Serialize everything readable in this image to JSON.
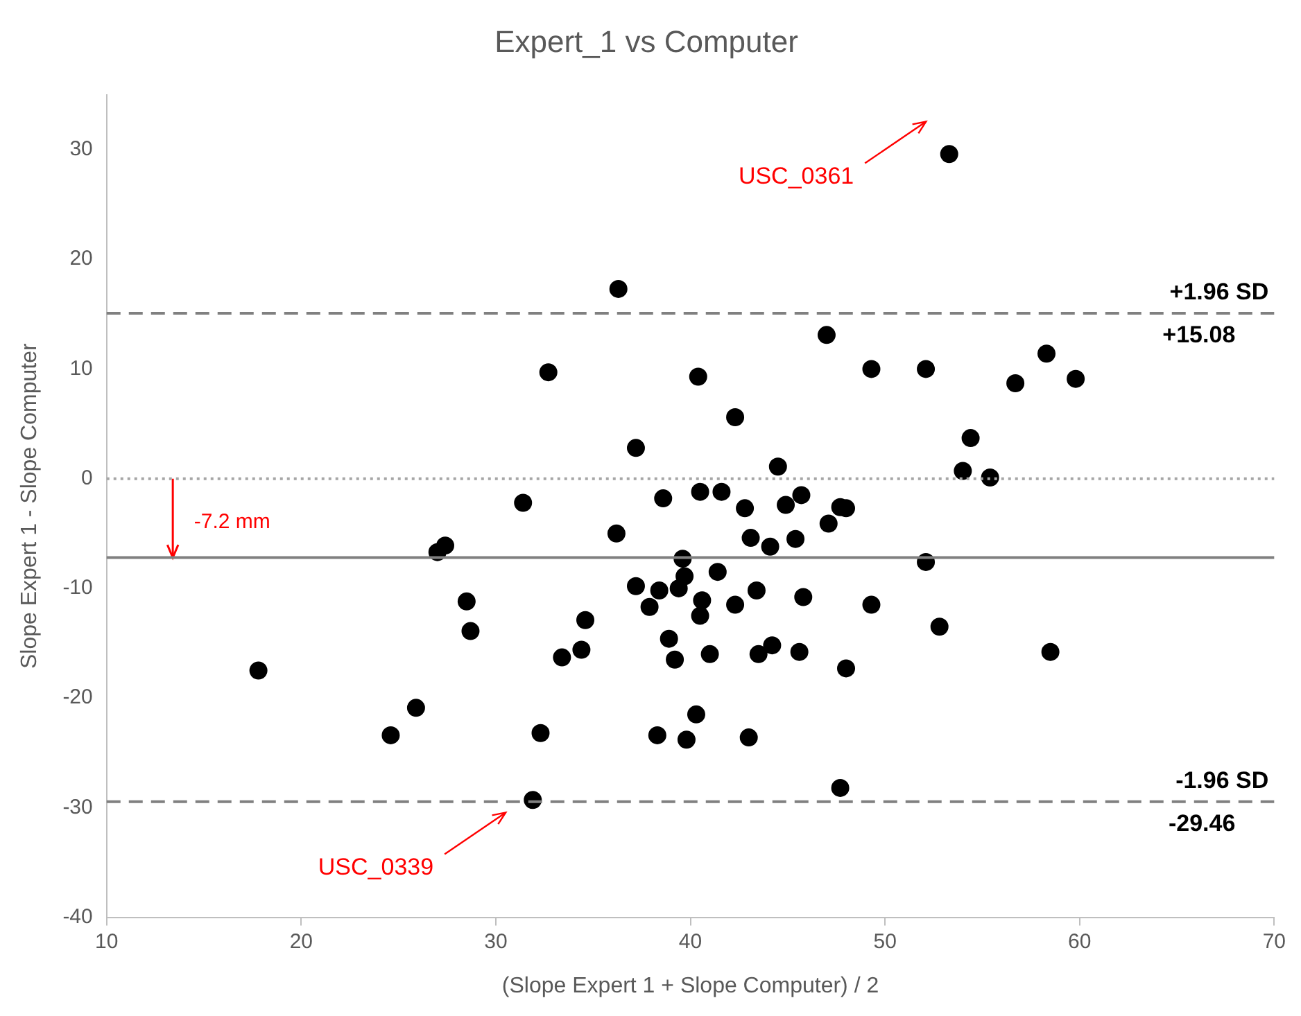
{
  "chart_data": {
    "type": "scatter",
    "title": "Expert_1 vs Computer",
    "xlabel": "(Slope Expert 1 + Slope Computer) / 2",
    "ylabel": "Slope Expert 1 - Slope Computer",
    "series": [
      {
        "color": "#000000",
        "x": [
          53.3,
          36.3,
          47.0,
          49.3,
          52.1,
          58.3,
          56.7,
          59.8,
          42.3,
          54.4,
          54.0,
          55.4,
          44.5,
          42.8,
          44.9,
          45.7,
          47.7,
          48.0,
          47.1,
          32.7,
          40.4,
          37.2,
          31.4,
          38.6,
          40.5,
          41.6,
          36.2,
          43.1,
          27.0,
          27.4,
          39.6,
          39.7,
          41.4,
          37.2,
          38.4,
          39.4,
          40.6,
          40.5,
          42.3,
          43.4,
          37.9,
          28.5,
          28.7,
          34.6,
          34.4,
          33.4,
          38.9,
          39.2,
          41.0,
          43.5,
          44.2,
          17.8,
          25.9,
          24.6,
          32.3,
          40.3,
          38.3,
          39.8,
          43.0,
          31.9,
          44.1,
          45.4,
          52.1,
          45.8,
          49.3,
          52.8,
          45.6,
          48.0,
          58.5,
          47.7
        ],
        "values": [
          29.6,
          17.3,
          13.1,
          10.0,
          10.0,
          11.4,
          8.7,
          9.1,
          5.6,
          3.7,
          0.7,
          0.1,
          1.1,
          -2.7,
          -2.4,
          -1.5,
          -2.6,
          -2.7,
          -4.1,
          9.7,
          9.3,
          2.8,
          -2.2,
          -1.8,
          -1.2,
          -1.2,
          -5.0,
          -5.4,
          -6.7,
          -6.1,
          -7.3,
          -8.9,
          -8.5,
          -9.8,
          -10.2,
          -10.0,
          -11.1,
          -12.5,
          -11.5,
          -10.2,
          -11.7,
          -11.2,
          -13.9,
          -12.9,
          -15.6,
          -16.3,
          -14.6,
          -16.5,
          -16.0,
          -16.0,
          -15.2,
          -17.5,
          -20.9,
          -23.4,
          -23.2,
          -21.5,
          -23.4,
          -23.8,
          -23.6,
          -29.3,
          -6.2,
          -5.5,
          -7.6,
          -10.8,
          -11.5,
          -13.5,
          -15.8,
          -17.3,
          -15.8,
          -28.2
        ]
      },
      {
        "type": "line",
        "marker": "cross",
        "color": "#ff0000",
        "x": [
          13.4,
          13.4
        ],
        "values": [
          0,
          -7.2
        ]
      }
    ],
    "xlim": [
      10,
      70
    ],
    "xticks": [
      10,
      20,
      30,
      40,
      50,
      60,
      70
    ],
    "ylim": [
      -40,
      35
    ],
    "yticks": [
      -40,
      -30,
      -20,
      -10,
      0,
      10,
      20,
      30
    ],
    "grid": false,
    "legend": false,
    "marker": "circle",
    "ref_lines": [
      {
        "axis": "y",
        "value": 15.08,
        "label": "+1.96 SD",
        "color": "#808080",
        "line_style": "dashed"
      },
      {
        "axis": "y",
        "value": 0,
        "color": "#a6a6a6",
        "line_style": "dotted"
      },
      {
        "axis": "y",
        "value": -7.2,
        "label": "-7.2 mm",
        "color": "#808080",
        "line_style": "solid"
      },
      {
        "axis": "y",
        "value": -29.46,
        "label": "-1.96 SD",
        "color": "#808080",
        "line_style": "dashed"
      }
    ],
    "annotations": [
      {
        "text": "+15.08",
        "x": 70,
        "y": 15.08
      },
      {
        "text": "-29.46",
        "x": 70,
        "y": -29.46
      },
      "USC_0361",
      "USC_0339"
    ]
  }
}
